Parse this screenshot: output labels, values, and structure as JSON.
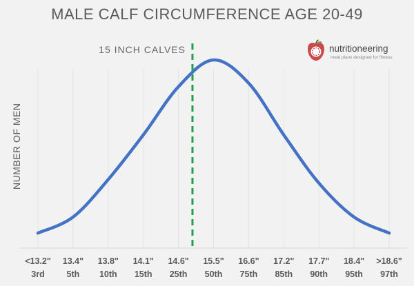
{
  "chart_data": {
    "type": "line",
    "title": "MALE CALF CIRCUMFERENCE AGE 20-49",
    "ylabel": "NUMBER OF MEN",
    "xlabel": "",
    "categories": [
      {
        "value": "<13.2\"",
        "percentile": "3rd"
      },
      {
        "value": "13.4\"",
        "percentile": "5th"
      },
      {
        "value": "13.8\"",
        "percentile": "10th"
      },
      {
        "value": "14.1\"",
        "percentile": "15th"
      },
      {
        "value": "14.6\"",
        "percentile": "25th"
      },
      {
        "value": "15.5\"",
        "percentile": "50th"
      },
      {
        "value": "16.6\"",
        "percentile": "75th"
      },
      {
        "value": "17.2\"",
        "percentile": "85th"
      },
      {
        "value": "17.7\"",
        "percentile": "90th"
      },
      {
        "value": "18.4\"",
        "percentile": "95th"
      },
      {
        "value": ">18.6\"",
        "percentile": "97th"
      }
    ],
    "series": [
      {
        "values": [
          3,
          12,
          33,
          58,
          85,
          100,
          87,
          58,
          31,
          12,
          3
        ]
      }
    ],
    "ylim": [
      0,
      100
    ],
    "grid": "vertical",
    "series_color": "#4472c4",
    "annotation": {
      "label": "15 INCH CALVES",
      "x_position_categories": 4.4,
      "color": "#1fa04b",
      "style": "dashed"
    }
  },
  "logo": {
    "brand": "nutritioneering",
    "tagline": "meal plans designed for fitness",
    "accent_color": "#c9494d"
  }
}
